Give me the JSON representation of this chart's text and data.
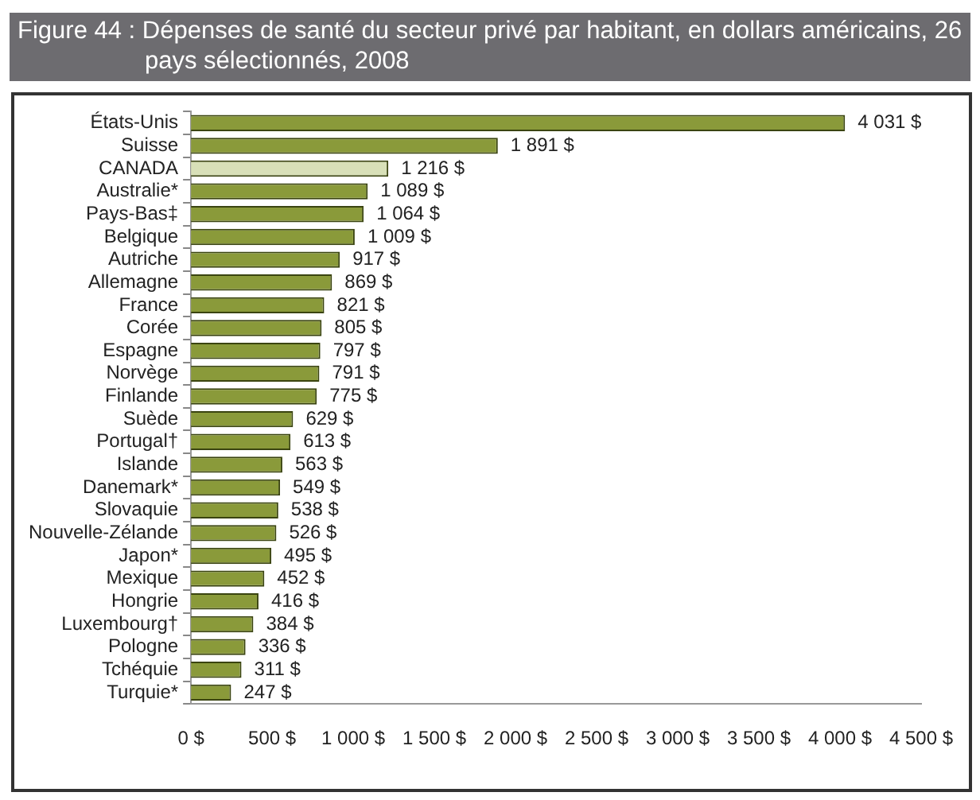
{
  "chart_data": {
    "type": "bar",
    "orientation": "horizontal",
    "title": "Figure 44 : Dépenses de santé du secteur privé par habitant, en dollars américains, 26 pays sélectionnés, 2008",
    "categories": [
      "États-Unis",
      "Suisse",
      "CANADA",
      "Australie*",
      "Pays-Bas‡",
      "Belgique",
      "Autriche",
      "Allemagne",
      "France",
      "Corée",
      "Espagne",
      "Norvège",
      "Finlande",
      "Suède",
      "Portugal†",
      "Islande",
      "Danemark*",
      "Slovaquie",
      "Nouvelle-Zélande",
      "Japon*",
      "Mexique",
      "Hongrie",
      "Luxembourg†",
      "Pologne",
      "Tchéquie",
      "Turquie*"
    ],
    "values": [
      4031,
      1891,
      1216,
      1089,
      1064,
      1009,
      917,
      869,
      821,
      805,
      797,
      791,
      775,
      629,
      613,
      563,
      549,
      538,
      526,
      495,
      452,
      416,
      384,
      336,
      311,
      247
    ],
    "colors": [
      "#8a9a3a",
      "#8a9a3a",
      "#d8e0b8",
      "#8a9a3a",
      "#8a9a3a",
      "#8a9a3a",
      "#8a9a3a",
      "#8a9a3a",
      "#8a9a3a",
      "#8a9a3a",
      "#8a9a3a",
      "#8a9a3a",
      "#8a9a3a",
      "#8a9a3a",
      "#8a9a3a",
      "#8a9a3a",
      "#8a9a3a",
      "#8a9a3a",
      "#8a9a3a",
      "#8a9a3a",
      "#8a9a3a",
      "#8a9a3a",
      "#8a9a3a",
      "#8a9a3a",
      "#8a9a3a",
      "#8a9a3a"
    ],
    "value_labels": [
      "4 031 $",
      "1 891 $",
      "1 216 $",
      "1 089 $",
      "1 064 $",
      "1 009 $",
      "917 $",
      "869 $",
      "821 $",
      "805 $",
      "797 $",
      "791 $",
      "775 $",
      "629 $",
      "613 $",
      "563 $",
      "549 $",
      "538 $",
      "526 $",
      "495 $",
      "452 $",
      "416 $",
      "384 $",
      "336 $",
      "311 $",
      "247 $"
    ],
    "xlim": [
      0,
      4500
    ],
    "xticks": [
      {
        "value": 0,
        "label": "0 $"
      },
      {
        "value": 500,
        "label": "500 $"
      },
      {
        "value": 1000,
        "label": "1 000 $"
      },
      {
        "value": 1500,
        "label": "1 500 $"
      },
      {
        "value": 2000,
        "label": "2 000 $"
      },
      {
        "value": 2500,
        "label": "2 500 $"
      },
      {
        "value": 3000,
        "label": "3 000 $"
      },
      {
        "value": 3500,
        "label": "3 500 $"
      },
      {
        "value": 4000,
        "label": "4 000 $"
      },
      {
        "value": 4500,
        "label": "4 500 $"
      }
    ],
    "grid": false,
    "legend": false
  }
}
